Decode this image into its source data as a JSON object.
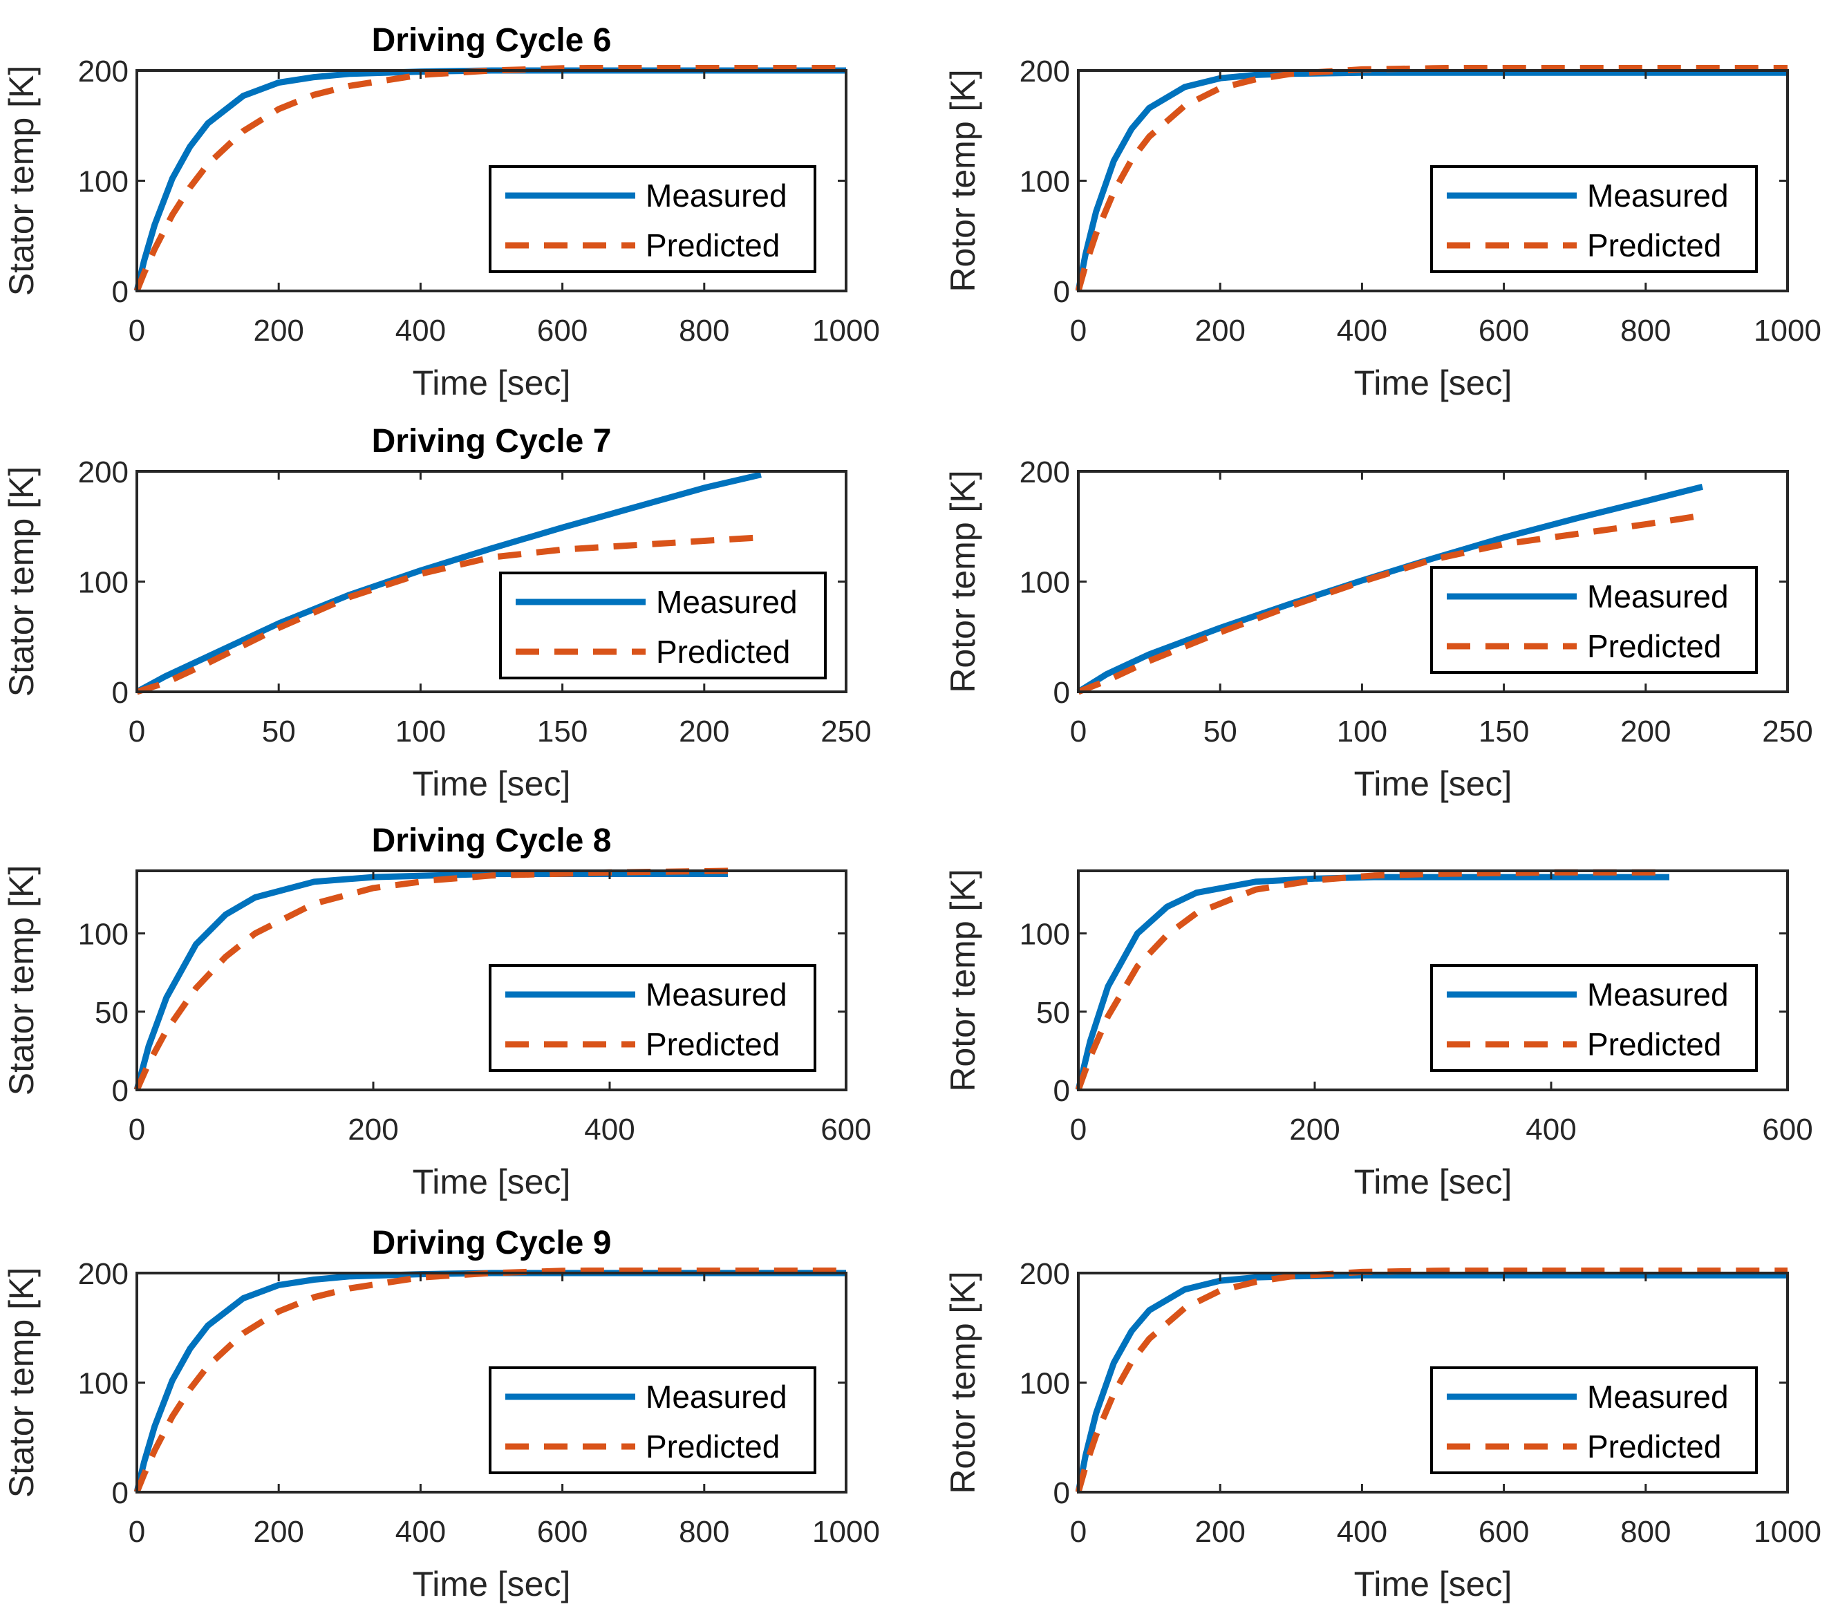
{
  "colors": {
    "measured": "#0072BD",
    "predicted": "#D95319",
    "axis": "#262626"
  },
  "chart_data": [
    {
      "type": "line",
      "title": "Driving Cycle 6",
      "xlabel": "Time [sec]",
      "ylabel": "Stator temp [K]",
      "xlim": [
        0,
        1000
      ],
      "ylim": [
        0,
        200
      ],
      "xticks": [
        0,
        200,
        400,
        600,
        800,
        1000
      ],
      "yticks": [
        0,
        100,
        200
      ],
      "legend": [
        "Measured",
        "Predicted"
      ],
      "legend_position": "lower-right",
      "x": [
        0,
        10,
        25,
        50,
        75,
        100,
        150,
        200,
        250,
        300,
        400,
        500,
        600,
        800,
        1000
      ],
      "series": [
        {
          "name": "Measured",
          "values": [
            0,
            27,
            60,
            102,
            131,
            152,
            177,
            189,
            194,
            197,
            199,
            200,
            200,
            200,
            200
          ]
        },
        {
          "name": "Predicted",
          "values": [
            0,
            16,
            38,
            69,
            94,
            115,
            145,
            165,
            178,
            186,
            196,
            200,
            202,
            203,
            203
          ]
        }
      ]
    },
    {
      "type": "line",
      "title": "",
      "xlabel": "Time [sec]",
      "ylabel": "Rotor temp [K]",
      "xlim": [
        0,
        1000
      ],
      "ylim": [
        0,
        200
      ],
      "xticks": [
        0,
        200,
        400,
        600,
        800,
        1000
      ],
      "yticks": [
        0,
        100,
        200
      ],
      "legend": [
        "Measured",
        "Predicted"
      ],
      "legend_position": "lower-right",
      "x": [
        0,
        10,
        25,
        50,
        75,
        100,
        150,
        200,
        250,
        300,
        400,
        500,
        600,
        800,
        1000
      ],
      "series": [
        {
          "name": "Measured",
          "values": [
            0,
            33,
            72,
            118,
            147,
            166,
            185,
            193,
            196,
            197,
            198,
            198,
            198,
            198,
            198
          ]
        },
        {
          "name": "Predicted",
          "values": [
            0,
            23,
            52,
            90,
            119,
            140,
            168,
            184,
            192,
            197,
            201,
            202,
            203,
            203,
            203
          ]
        }
      ]
    },
    {
      "type": "line",
      "title": "Driving Cycle 7",
      "xlabel": "Time [sec]",
      "ylabel": "Stator temp [K]",
      "xlim": [
        0,
        250
      ],
      "ylim": [
        0,
        200
      ],
      "xticks": [
        0,
        50,
        100,
        150,
        200,
        250
      ],
      "yticks": [
        0,
        100,
        200
      ],
      "legend": [
        "Measured",
        "Predicted"
      ],
      "legend_position": "lower-right",
      "x": [
        0,
        10,
        25,
        50,
        75,
        100,
        125,
        150,
        175,
        200,
        220
      ],
      "series": [
        {
          "name": "Measured",
          "values": [
            0,
            14,
            32,
            62,
            88,
            110,
            130,
            149,
            167,
            185,
            197
          ]
        },
        {
          "name": "Predicted",
          "values": [
            0,
            8,
            26,
            58,
            86,
            107,
            122,
            129,
            133,
            137,
            140
          ]
        }
      ]
    },
    {
      "type": "line",
      "title": "",
      "xlabel": "Time [sec]",
      "ylabel": "Rotor temp [K]",
      "xlim": [
        0,
        250
      ],
      "ylim": [
        0,
        200
      ],
      "xticks": [
        0,
        50,
        100,
        150,
        200,
        250
      ],
      "yticks": [
        0,
        100,
        200
      ],
      "legend": [
        "Measured",
        "Predicted"
      ],
      "legend_position": "lower-right",
      "x": [
        0,
        10,
        25,
        50,
        75,
        100,
        125,
        150,
        175,
        200,
        220
      ],
      "series": [
        {
          "name": "Measured",
          "values": [
            0,
            16,
            34,
            58,
            80,
            101,
            121,
            140,
            157,
            173,
            186
          ]
        },
        {
          "name": "Predicted",
          "values": [
            0,
            10,
            28,
            54,
            78,
            100,
            120,
            134,
            143,
            152,
            160
          ]
        }
      ]
    },
    {
      "type": "line",
      "title": "Driving Cycle 8",
      "xlabel": "Time [sec]",
      "ylabel": "Stator temp [K]",
      "xlim": [
        0,
        600
      ],
      "ylim": [
        0,
        140
      ],
      "xticks": [
        0,
        200,
        400,
        600
      ],
      "yticks": [
        0,
        50,
        100
      ],
      "legend": [
        "Measured",
        "Predicted"
      ],
      "legend_position": "lower-right",
      "x": [
        0,
        10,
        25,
        50,
        75,
        100,
        150,
        200,
        250,
        300,
        400,
        500
      ],
      "series": [
        {
          "name": "Measured",
          "values": [
            0,
            28,
            59,
            93,
            112,
            123,
            133,
            136,
            137,
            138,
            138,
            138
          ]
        },
        {
          "name": "Predicted",
          "values": [
            0,
            17,
            38,
            65,
            85,
            100,
            119,
            129,
            134,
            137,
            139,
            140
          ]
        }
      ]
    },
    {
      "type": "line",
      "title": "",
      "xlabel": "Time [sec]",
      "ylabel": "Rotor temp [K]",
      "xlim": [
        0,
        600
      ],
      "ylim": [
        0,
        140
      ],
      "xticks": [
        0,
        200,
        400,
        600
      ],
      "yticks": [
        0,
        50,
        100
      ],
      "legend": [
        "Measured",
        "Predicted"
      ],
      "legend_position": "lower-right",
      "x": [
        0,
        10,
        25,
        50,
        75,
        100,
        150,
        200,
        250,
        300,
        400,
        500
      ],
      "series": [
        {
          "name": "Measured",
          "values": [
            0,
            31,
            66,
            100,
            117,
            126,
            133,
            135,
            136,
            136,
            136,
            136
          ]
        },
        {
          "name": "Predicted",
          "values": [
            0,
            21,
            47,
            79,
            99,
            113,
            128,
            134,
            137,
            138,
            139,
            139
          ]
        }
      ]
    },
    {
      "type": "line",
      "title": "Driving Cycle 9",
      "xlabel": "Time [sec]",
      "ylabel": "Stator temp [K]",
      "xlim": [
        0,
        1000
      ],
      "ylim": [
        0,
        200
      ],
      "xticks": [
        0,
        200,
        400,
        600,
        800,
        1000
      ],
      "yticks": [
        0,
        100,
        200
      ],
      "legend": [
        "Measured",
        "Predicted"
      ],
      "legend_position": "lower-right",
      "x": [
        0,
        10,
        25,
        50,
        75,
        100,
        150,
        200,
        250,
        300,
        400,
        500,
        600,
        800,
        1000
      ],
      "series": [
        {
          "name": "Measured",
          "values": [
            0,
            27,
            60,
            102,
            131,
            152,
            177,
            189,
            194,
            197,
            199,
            200,
            200,
            200,
            200
          ]
        },
        {
          "name": "Predicted",
          "values": [
            0,
            16,
            38,
            69,
            94,
            115,
            145,
            165,
            178,
            186,
            196,
            200,
            202,
            203,
            203
          ]
        }
      ]
    },
    {
      "type": "line",
      "title": "",
      "xlabel": "Time [sec]",
      "ylabel": "Rotor temp [K]",
      "xlim": [
        0,
        1000
      ],
      "ylim": [
        0,
        200
      ],
      "xticks": [
        0,
        200,
        400,
        600,
        800,
        1000
      ],
      "yticks": [
        0,
        100,
        200
      ],
      "legend": [
        "Measured",
        "Predicted"
      ],
      "legend_position": "lower-right",
      "x": [
        0,
        10,
        25,
        50,
        75,
        100,
        150,
        200,
        250,
        300,
        400,
        500,
        600,
        800,
        1000
      ],
      "series": [
        {
          "name": "Measured",
          "values": [
            0,
            33,
            72,
            118,
            147,
            166,
            185,
            193,
            196,
            197,
            198,
            198,
            198,
            198,
            198
          ]
        },
        {
          "name": "Predicted",
          "values": [
            0,
            23,
            52,
            90,
            119,
            140,
            168,
            184,
            192,
            197,
            201,
            202,
            203,
            203,
            203
          ]
        }
      ]
    }
  ]
}
